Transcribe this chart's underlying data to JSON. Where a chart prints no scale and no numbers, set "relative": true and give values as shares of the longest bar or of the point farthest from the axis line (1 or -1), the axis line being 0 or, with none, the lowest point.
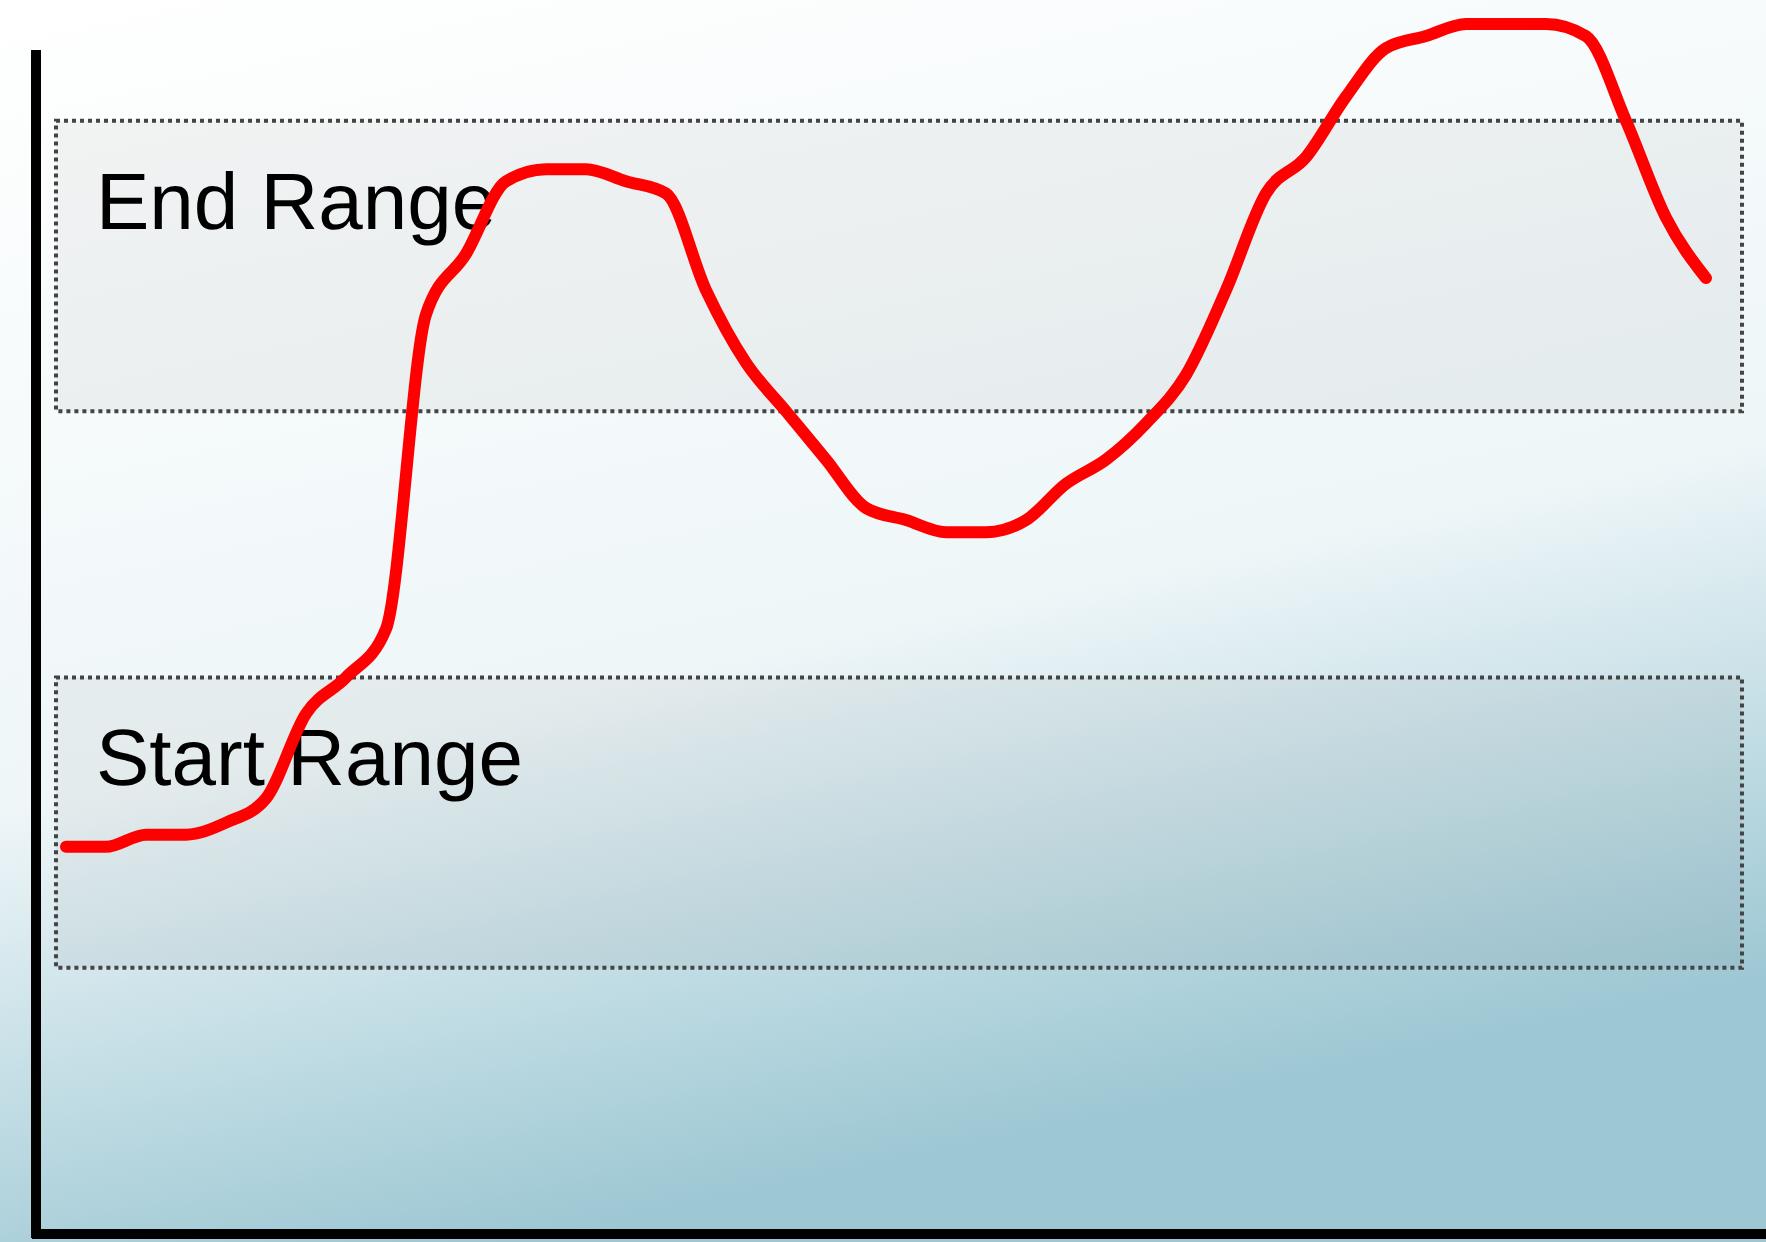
{
  "chart_data": {
    "type": "line",
    "relative": true,
    "categories": [
      null,
      null,
      null,
      null,
      null,
      null,
      null,
      null,
      null,
      null,
      null,
      null,
      null,
      null,
      null,
      null,
      null,
      null,
      null,
      null,
      null,
      null,
      null,
      null,
      null,
      null,
      null,
      null,
      null,
      null,
      null,
      null,
      null,
      null,
      null,
      null,
      null,
      null,
      null,
      null,
      null,
      null
    ],
    "series": [
      {
        "color": "#ff0000",
        "values": [
          0.32,
          0.32,
          0.33,
          0.33,
          0.34,
          0.36,
          0.43,
          0.46,
          0.5,
          0.76,
          0.81,
          0.87,
          0.88,
          0.88,
          0.87,
          0.86,
          0.78,
          0.72,
          0.68,
          0.64,
          0.6,
          0.59,
          0.58,
          0.58,
          0.59,
          0.62,
          0.64,
          0.67,
          0.71,
          0.78,
          0.86,
          0.89,
          0.94,
          0.98,
          0.99,
          1,
          1,
          1,
          0.99,
          0.92,
          0.84,
          0.79
        ]
      }
    ],
    "bands": [
      {
        "axis": "y",
        "from": 0.68,
        "to": 0.92,
        "label": "End Range",
        "color": "#444444"
      },
      {
        "axis": "y",
        "from": 0.22,
        "to": 0.46,
        "label": "Start Range",
        "color": "#444444"
      }
    ],
    "marker": "none",
    "line_style": "solid"
  }
}
